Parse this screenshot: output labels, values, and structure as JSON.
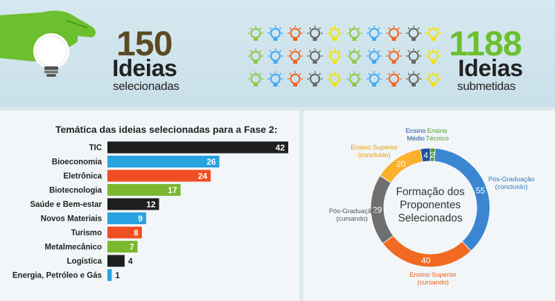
{
  "header": {
    "selected": {
      "number": "150",
      "word": "Ideias",
      "sub": "selecionadas"
    },
    "submitted": {
      "number": "1188",
      "word": "Ideias",
      "sub": "submetidas"
    },
    "icon_grid": {
      "rows": 3,
      "cols": 10,
      "colors": [
        "#8dc63f",
        "#3fa9f5",
        "#f26522",
        "#666666",
        "#f2e200",
        "#8dc63f",
        "#3fa9f5",
        "#f26522",
        "#666666",
        "#f2e200"
      ]
    }
  },
  "chart_data": [
    {
      "type": "bar",
      "title": "Temática das ideias selecionadas para a Fase 2:",
      "orientation": "horizontal",
      "categories": [
        "TIC",
        "Bioeconomia",
        "Eletrônica",
        "Biotecnologia",
        "Saúde e Bem-estar",
        "Novos Materiais",
        "Turismo",
        "Metalmecânico",
        "Logística",
        "Energia, Petróleo e Gás"
      ],
      "values": [
        42,
        26,
        24,
        17,
        12,
        9,
        8,
        7,
        4,
        1
      ],
      "value_labels": [
        "42",
        "26",
        "24",
        "17",
        "12",
        "9",
        "8",
        "7",
        "4",
        "1"
      ],
      "colors": [
        "#1f1f1f",
        "#29a3e0",
        "#f04e23",
        "#7cb82f",
        "#1f1f1f",
        "#29a3e0",
        "#f04e23",
        "#7cb82f",
        "#1f1f1f",
        "#29a3e0"
      ],
      "xlim": [
        0,
        42
      ]
    },
    {
      "type": "pie",
      "subtype": "donut",
      "center_text": [
        "Formação dos",
        "Proponentes",
        "Selecionados"
      ],
      "slices": [
        {
          "label": "Ensino Técnico",
          "value": 2,
          "value_label": "2",
          "color": "#4d9a2f",
          "label_color": "#4d9a2f",
          "label_lines": [
            "Ensino",
            "Técnico"
          ]
        },
        {
          "label": "Pós-Graduação (concluído)",
          "value": 55,
          "value_label": "55",
          "color": "#3a86d1",
          "label_color": "#2f77c4",
          "label_lines": [
            "Pós-Graduação",
            "(concluído)"
          ]
        },
        {
          "label": "Ensino Superior (cursando)",
          "value": 40,
          "value_label": "40",
          "color": "#f26a21",
          "label_color": "#e85c12",
          "label_lines": [
            "Ensino Superior",
            "(cursando)"
          ]
        },
        {
          "label": "Pós-Graduação (cursando)",
          "value": 29,
          "value_label": "29",
          "color": "#6f6f6f",
          "label_color": "#555555",
          "label_lines": [
            "Pós-Graduação",
            "(cursando)"
          ]
        },
        {
          "label": "Ensino Superior (concluído)",
          "value": 20,
          "value_label": "20",
          "color": "#fbb12b",
          "label_color": "#e89a00",
          "label_lines": [
            "Ensino Superior",
            "(concluído)"
          ]
        },
        {
          "label": "Ensino Médio",
          "value": 4,
          "value_label": "4",
          "color": "#1f4f9e",
          "label_color": "#1f4f9e",
          "label_lines": [
            "Ensino",
            "Médio"
          ]
        }
      ]
    }
  ]
}
